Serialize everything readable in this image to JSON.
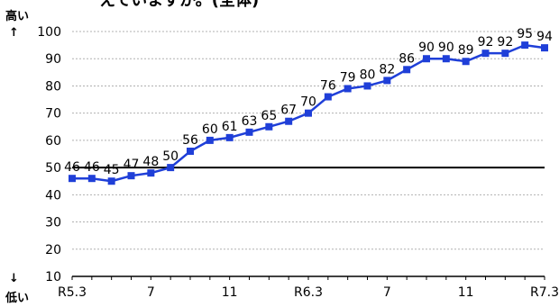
{
  "chart_data": {
    "type": "line",
    "title": "えていますか。(全体)",
    "top_label": "高い",
    "top_arrow": "↑",
    "bottom_label": "低い",
    "bottom_arrow": "↓",
    "ylim": [
      10,
      100
    ],
    "yticks": [
      10,
      20,
      30,
      40,
      50,
      60,
      70,
      80,
      90,
      100
    ],
    "reference_line": 50,
    "x_tick_labels": [
      {
        "index": 0,
        "label": "R5.3"
      },
      {
        "index": 4,
        "label": "7"
      },
      {
        "index": 8,
        "label": "11"
      },
      {
        "index": 12,
        "label": "R6.3"
      },
      {
        "index": 16,
        "label": "7"
      },
      {
        "index": 20,
        "label": "11"
      },
      {
        "index": 24,
        "label": "R7.3"
      }
    ],
    "values": [
      46,
      46,
      45,
      47,
      48,
      50,
      56,
      60,
      61,
      63,
      65,
      67,
      70,
      76,
      79,
      80,
      82,
      86,
      90,
      90,
      89,
      92,
      92,
      95,
      94
    ],
    "grid": true,
    "colors": {
      "line": "#1f3fd8",
      "marker": "#1f3fd8",
      "grid": "#b0b0b0",
      "reference": "#000000"
    }
  }
}
